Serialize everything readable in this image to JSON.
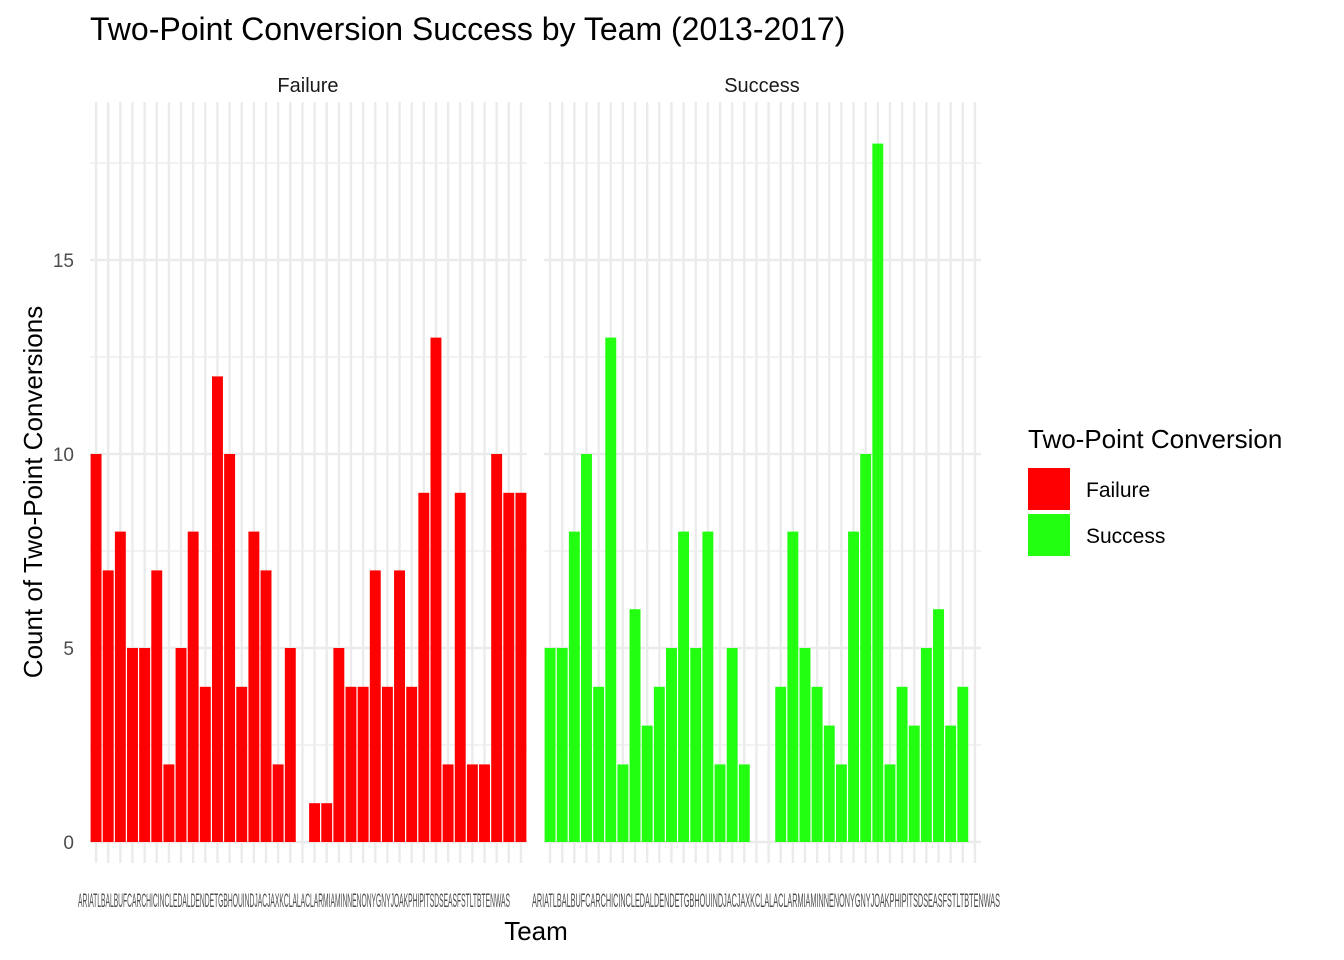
{
  "chart_data": {
    "type": "bar",
    "title": "Two-Point Conversion Success by Team (2013-2017)",
    "xlabel": "Team",
    "ylabel": "Count of Two-Point Conversions",
    "ylim": [
      0,
      18.6
    ],
    "yticks": [
      0,
      5,
      10,
      15
    ],
    "grid": true,
    "legend_position": "right",
    "legend_title": "Two-Point Conversion",
    "categories": [
      "ARI",
      "ATL",
      "BAL",
      "BUF",
      "CAR",
      "CHI",
      "CIN",
      "CLE",
      "DAL",
      "DEN",
      "DET",
      "GB",
      "HOU",
      "IND",
      "JAC",
      "JAX",
      "KC",
      "LA",
      "LAC",
      "LAR",
      "MIA",
      "MIN",
      "NE",
      "NO",
      "NYG",
      "NYJ",
      "OAK",
      "PHI",
      "PIT",
      "SD",
      "SEA",
      "SF",
      "STL",
      "TB",
      "TEN",
      "WAS"
    ],
    "x_tick_text": "ARIATLBALBUFCARCHICINCLEDALDENDETGBHOUINDJACJAXKCLALACLARMIAMINNENONYGNYJOAKPHIPITSDSEASFSTLTBTENWAS",
    "facets": [
      {
        "name": "Failure",
        "color": "#FF0000",
        "values": [
          10,
          7,
          8,
          5,
          5,
          7,
          2,
          5,
          8,
          4,
          12,
          10,
          4,
          8,
          7,
          2,
          5,
          0,
          1,
          1,
          5,
          4,
          4,
          7,
          4,
          7,
          4,
          9,
          13,
          2,
          9,
          2,
          2,
          10,
          9,
          9
        ]
      },
      {
        "name": "Success",
        "color": "#22FF11",
        "values": [
          5,
          5,
          8,
          10,
          4,
          13,
          2,
          6,
          3,
          4,
          5,
          8,
          5,
          8,
          2,
          5,
          2,
          0,
          0,
          4,
          8,
          5,
          4,
          3,
          2,
          8,
          10,
          18,
          2,
          4,
          3,
          5,
          6,
          3,
          4,
          0
        ]
      }
    ],
    "legend": [
      {
        "label": "Failure",
        "color": "#FF0000"
      },
      {
        "label": "Success",
        "color": "#22FF11"
      }
    ]
  }
}
